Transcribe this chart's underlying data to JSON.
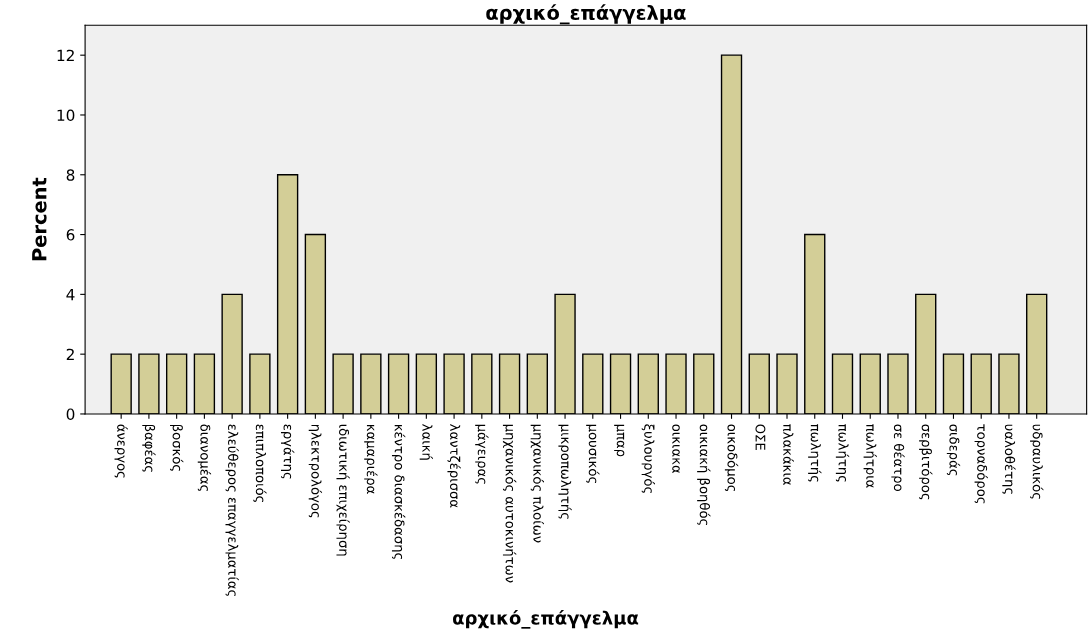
{
  "chart_data": {
    "type": "bar",
    "title": "αρχικό_επάγγελμα",
    "xlabel": "αρχικό_επάγγελμα",
    "ylabel": "Percent",
    "categories": [
      "άνεργος",
      "βαφέας",
      "βοσκός",
      "διανομέας",
      "ελεύθερος επαγγελματίας",
      "επιπλοποιός",
      "εργάτης",
      "ηλεκτρολόγος",
      "ιδιωτική επιχείρηση",
      "καμαριέρα",
      "κέντρο διασκέδασης",
      "λαική",
      "λαντζέρισσα",
      "μάγειρας",
      "μηχανικός αυτοκινήτων",
      "μηχανικός πλοίων",
      "μικροπωλητής",
      "μουσικός",
      "μπαρ",
      "ξυλουργός",
      "οικιακα",
      "οικιακή βοηθός",
      "οικοδόμος",
      "ΟΣΕ",
      "πλακάκια",
      "πωλητής",
      "πωλήτης",
      "πωλήτρια",
      "σε θέατρο",
      "σερβιτόρος",
      "σιδεράς",
      "τορναδόρος",
      "υαλοθέτης",
      "υδραυλικός"
    ],
    "values": [
      2,
      2,
      2,
      2,
      4,
      2,
      8,
      6,
      2,
      2,
      2,
      2,
      2,
      2,
      2,
      2,
      4,
      2,
      2,
      2,
      2,
      2,
      12,
      2,
      2,
      6,
      2,
      2,
      2,
      4,
      2,
      2,
      2,
      4
    ],
    "color": "#d3ce97",
    "ylim": [
      0,
      13
    ],
    "yticks": [
      0,
      2,
      4,
      6,
      8,
      10,
      12
    ],
    "grid": false,
    "legend": false
  }
}
